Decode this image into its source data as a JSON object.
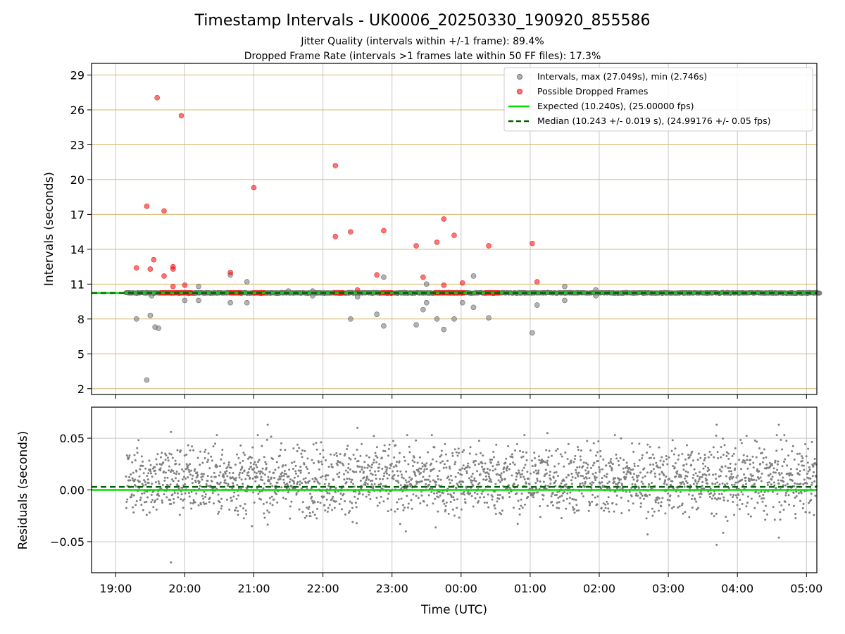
{
  "title": "Timestamp Intervals - UK0006_20250330_190920_855586",
  "subtitle_1": "Jitter Quality (intervals within +/-1 frame): 89.4%",
  "subtitle_2": "Dropped Frame Rate (intervals >1 frames late within 50 FF files): 17.3%",
  "colors": {
    "intervals": "#808080",
    "dropped": "#ff0000",
    "expected": "#00e000",
    "median": "#006400",
    "hgrid": "#d4b870",
    "vgrid": "#c8c8c8"
  },
  "chart_data": [
    {
      "type": "scatter",
      "ylabel": "Intervals (seconds)",
      "ylim": [
        1.5,
        30
      ],
      "yticks": [
        "2",
        "5",
        "8",
        "11",
        "14",
        "17",
        "20",
        "23",
        "26",
        "29"
      ],
      "ytick_values": [
        2,
        5,
        8,
        11,
        14,
        17,
        20,
        23,
        26,
        29
      ],
      "grid": true,
      "legend_position": "top-right",
      "legend": {
        "intervals": "Intervals, max (27.049s), min (2.746s)",
        "dropped": "Possible Dropped Frames",
        "expected": "Expected (10.240s), (25.00000 fps)",
        "median": "Median (10.243 +/- 0.019 s), (24.99176 +/- 0.05 fps)"
      },
      "expected_value": 10.24,
      "median_value": 10.243,
      "baseline_band": [
        19.15,
        29.2
      ],
      "intervals_outliers": [
        {
          "x": 19.3,
          "y": 8.0
        },
        {
          "x": 19.45,
          "y": 2.75
        },
        {
          "x": 19.5,
          "y": 8.3
        },
        {
          "x": 19.57,
          "y": 7.3
        },
        {
          "x": 19.62,
          "y": 7.2
        },
        {
          "x": 19.52,
          "y": 10.0
        },
        {
          "x": 20.0,
          "y": 9.6
        },
        {
          "x": 20.2,
          "y": 10.8
        },
        {
          "x": 20.2,
          "y": 9.6
        },
        {
          "x": 20.66,
          "y": 11.8
        },
        {
          "x": 20.66,
          "y": 9.4
        },
        {
          "x": 20.9,
          "y": 11.2
        },
        {
          "x": 20.9,
          "y": 9.4
        },
        {
          "x": 21.5,
          "y": 10.4
        },
        {
          "x": 21.85,
          "y": 10.4
        },
        {
          "x": 21.85,
          "y": 10.0
        },
        {
          "x": 22.4,
          "y": 8.0
        },
        {
          "x": 22.5,
          "y": 9.9
        },
        {
          "x": 22.78,
          "y": 8.4
        },
        {
          "x": 22.88,
          "y": 11.6
        },
        {
          "x": 22.88,
          "y": 7.4
        },
        {
          "x": 23.35,
          "y": 7.5
        },
        {
          "x": 23.45,
          "y": 8.8
        },
        {
          "x": 23.5,
          "y": 11.0
        },
        {
          "x": 23.5,
          "y": 9.4
        },
        {
          "x": 23.65,
          "y": 8.0
        },
        {
          "x": 23.75,
          "y": 7.1
        },
        {
          "x": 23.9,
          "y": 8.0
        },
        {
          "x": 24.02,
          "y": 9.4
        },
        {
          "x": 24.18,
          "y": 11.7
        },
        {
          "x": 24.18,
          "y": 9.0
        },
        {
          "x": 24.4,
          "y": 8.1
        },
        {
          "x": 25.03,
          "y": 6.8
        },
        {
          "x": 25.1,
          "y": 9.2
        },
        {
          "x": 25.5,
          "y": 10.8
        },
        {
          "x": 25.5,
          "y": 9.6
        },
        {
          "x": 25.95,
          "y": 10.5
        },
        {
          "x": 25.95,
          "y": 10.0
        }
      ],
      "dropped_points": [
        {
          "x": 19.3,
          "y": 12.4
        },
        {
          "x": 19.45,
          "y": 17.7
        },
        {
          "x": 19.5,
          "y": 12.3
        },
        {
          "x": 19.55,
          "y": 13.1
        },
        {
          "x": 19.6,
          "y": 27.05
        },
        {
          "x": 19.7,
          "y": 17.3
        },
        {
          "x": 19.7,
          "y": 11.7
        },
        {
          "x": 19.83,
          "y": 12.5
        },
        {
          "x": 19.83,
          "y": 12.3
        },
        {
          "x": 19.83,
          "y": 10.8
        },
        {
          "x": 19.95,
          "y": 25.5
        },
        {
          "x": 20.0,
          "y": 10.9
        },
        {
          "x": 20.66,
          "y": 12.0
        },
        {
          "x": 21.0,
          "y": 19.3
        },
        {
          "x": 22.18,
          "y": 21.2
        },
        {
          "x": 22.18,
          "y": 15.1
        },
        {
          "x": 22.4,
          "y": 15.5
        },
        {
          "x": 22.5,
          "y": 10.5
        },
        {
          "x": 22.78,
          "y": 11.8
        },
        {
          "x": 22.88,
          "y": 15.6
        },
        {
          "x": 23.35,
          "y": 14.3
        },
        {
          "x": 23.45,
          "y": 11.6
        },
        {
          "x": 23.65,
          "y": 14.6
        },
        {
          "x": 23.75,
          "y": 16.6
        },
        {
          "x": 23.75,
          "y": 10.9
        },
        {
          "x": 23.9,
          "y": 15.2
        },
        {
          "x": 24.02,
          "y": 11.1
        },
        {
          "x": 24.4,
          "y": 14.3
        },
        {
          "x": 25.03,
          "y": 14.5
        },
        {
          "x": 25.1,
          "y": 11.2
        }
      ],
      "dropped_clusters": [
        {
          "from": 19.65,
          "to": 20.1,
          "y": 10.25
        },
        {
          "from": 20.65,
          "to": 20.8,
          "y": 10.25
        },
        {
          "from": 21.0,
          "to": 21.15,
          "y": 10.25
        },
        {
          "from": 22.17,
          "to": 22.3,
          "y": 10.25
        },
        {
          "from": 22.85,
          "to": 23.0,
          "y": 10.25
        },
        {
          "from": 23.62,
          "to": 24.05,
          "y": 10.25
        },
        {
          "from": 24.35,
          "to": 24.55,
          "y": 10.25
        }
      ]
    },
    {
      "type": "scatter",
      "ylabel": "Residuals (seconds)",
      "xlabel": "Time (UTC)",
      "ylim": [
        -0.08,
        0.08
      ],
      "yticks": [
        "0.05",
        "0.00",
        "−0.05"
      ],
      "ytick_values": [
        0.05,
        0.0,
        -0.05
      ],
      "xlim": [
        18.65,
        29.15
      ],
      "xticks": [
        "19:00",
        "20:00",
        "21:00",
        "22:00",
        "23:00",
        "00:00",
        "01:00",
        "02:00",
        "03:00",
        "04:00",
        "05:00"
      ],
      "xtick_values": [
        19,
        20,
        21,
        22,
        23,
        24,
        25,
        26,
        27,
        28,
        29
      ],
      "grid": true,
      "expected_residual": 0.0,
      "median_residual": 0.003,
      "residual_range": [
        19.15,
        29.15
      ],
      "residual_spread": [
        -0.03,
        0.05
      ],
      "residual_outliers": [
        {
          "x": 19.8,
          "y": -0.07
        },
        {
          "x": 19.8,
          "y": 0.056
        },
        {
          "x": 21.2,
          "y": 0.063
        },
        {
          "x": 22.5,
          "y": 0.06
        },
        {
          "x": 23.2,
          "y": -0.04
        },
        {
          "x": 25.25,
          "y": 0.055
        },
        {
          "x": 26.7,
          "y": -0.043
        },
        {
          "x": 27.7,
          "y": 0.063
        },
        {
          "x": 27.7,
          "y": -0.053
        },
        {
          "x": 28.6,
          "y": 0.063
        },
        {
          "x": 28.6,
          "y": -0.046
        }
      ]
    }
  ]
}
